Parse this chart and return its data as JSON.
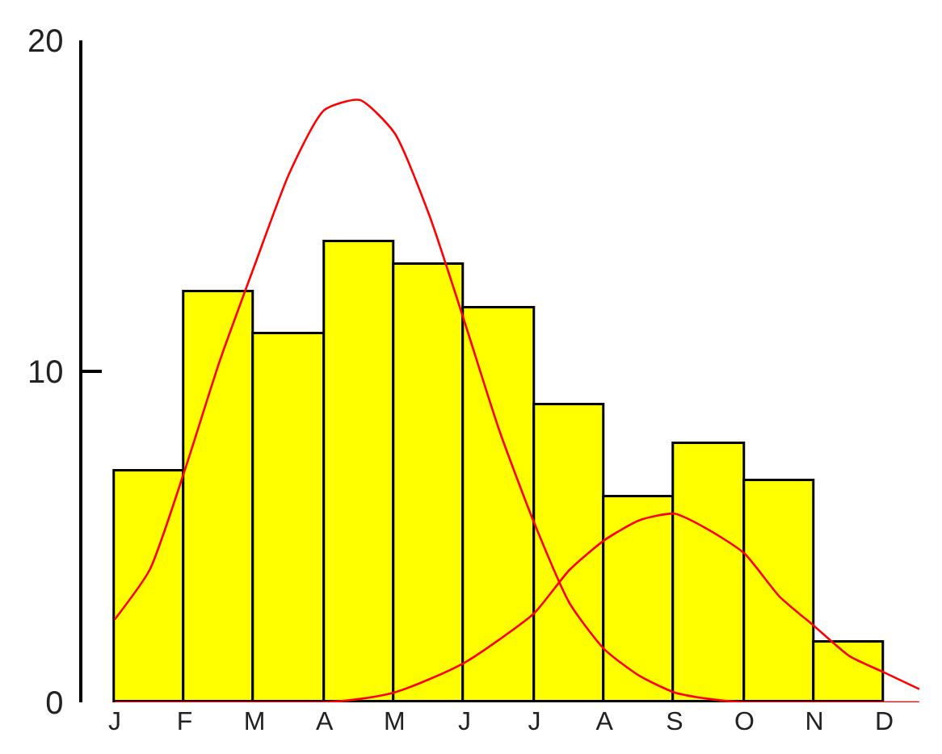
{
  "chart_data": {
    "type": "bar",
    "categories": [
      "J",
      null,
      "F",
      null,
      "M",
      null,
      "A",
      null,
      "M",
      null,
      "J",
      null,
      "J",
      null,
      "A",
      null,
      "S",
      null,
      "O",
      null,
      "N",
      null,
      "D",
      null
    ],
    "series": [
      {
        "color": "#ffff00",
        "values": [
          null,
          7.0,
          null,
          12.4,
          null,
          11.1,
          null,
          13.9,
          null,
          13.2,
          null,
          11.9,
          null,
          9.0,
          null,
          6.2,
          null,
          7.8,
          null,
          6.7,
          null,
          1.8,
          null,
          null
        ]
      },
      {
        "type": "line",
        "color": "#ff0000",
        "values": [
          2.5,
          4.0,
          7.0,
          10.3,
          13.2,
          16.0,
          17.9,
          18.2,
          17.2,
          14.7,
          11.5,
          8.2,
          5.4,
          3.0,
          1.6,
          0.8,
          0.3,
          0.1,
          0.0,
          0.0,
          0.0,
          0.0,
          0.0,
          0.0
        ]
      },
      {
        "type": "line",
        "color": "#ff0000",
        "values": [
          0.0,
          0.0,
          0.0,
          0.0,
          0.0,
          0.0,
          0.0,
          0.1,
          0.3,
          0.7,
          1.2,
          1.9,
          2.7,
          4.0,
          4.9,
          5.5,
          5.7,
          5.2,
          4.5,
          3.2,
          2.3,
          1.4,
          0.9,
          0.4
        ]
      }
    ],
    "ylim": [
      0,
      20
    ],
    "yticks": [
      0,
      10,
      20
    ],
    "grid": false
  }
}
